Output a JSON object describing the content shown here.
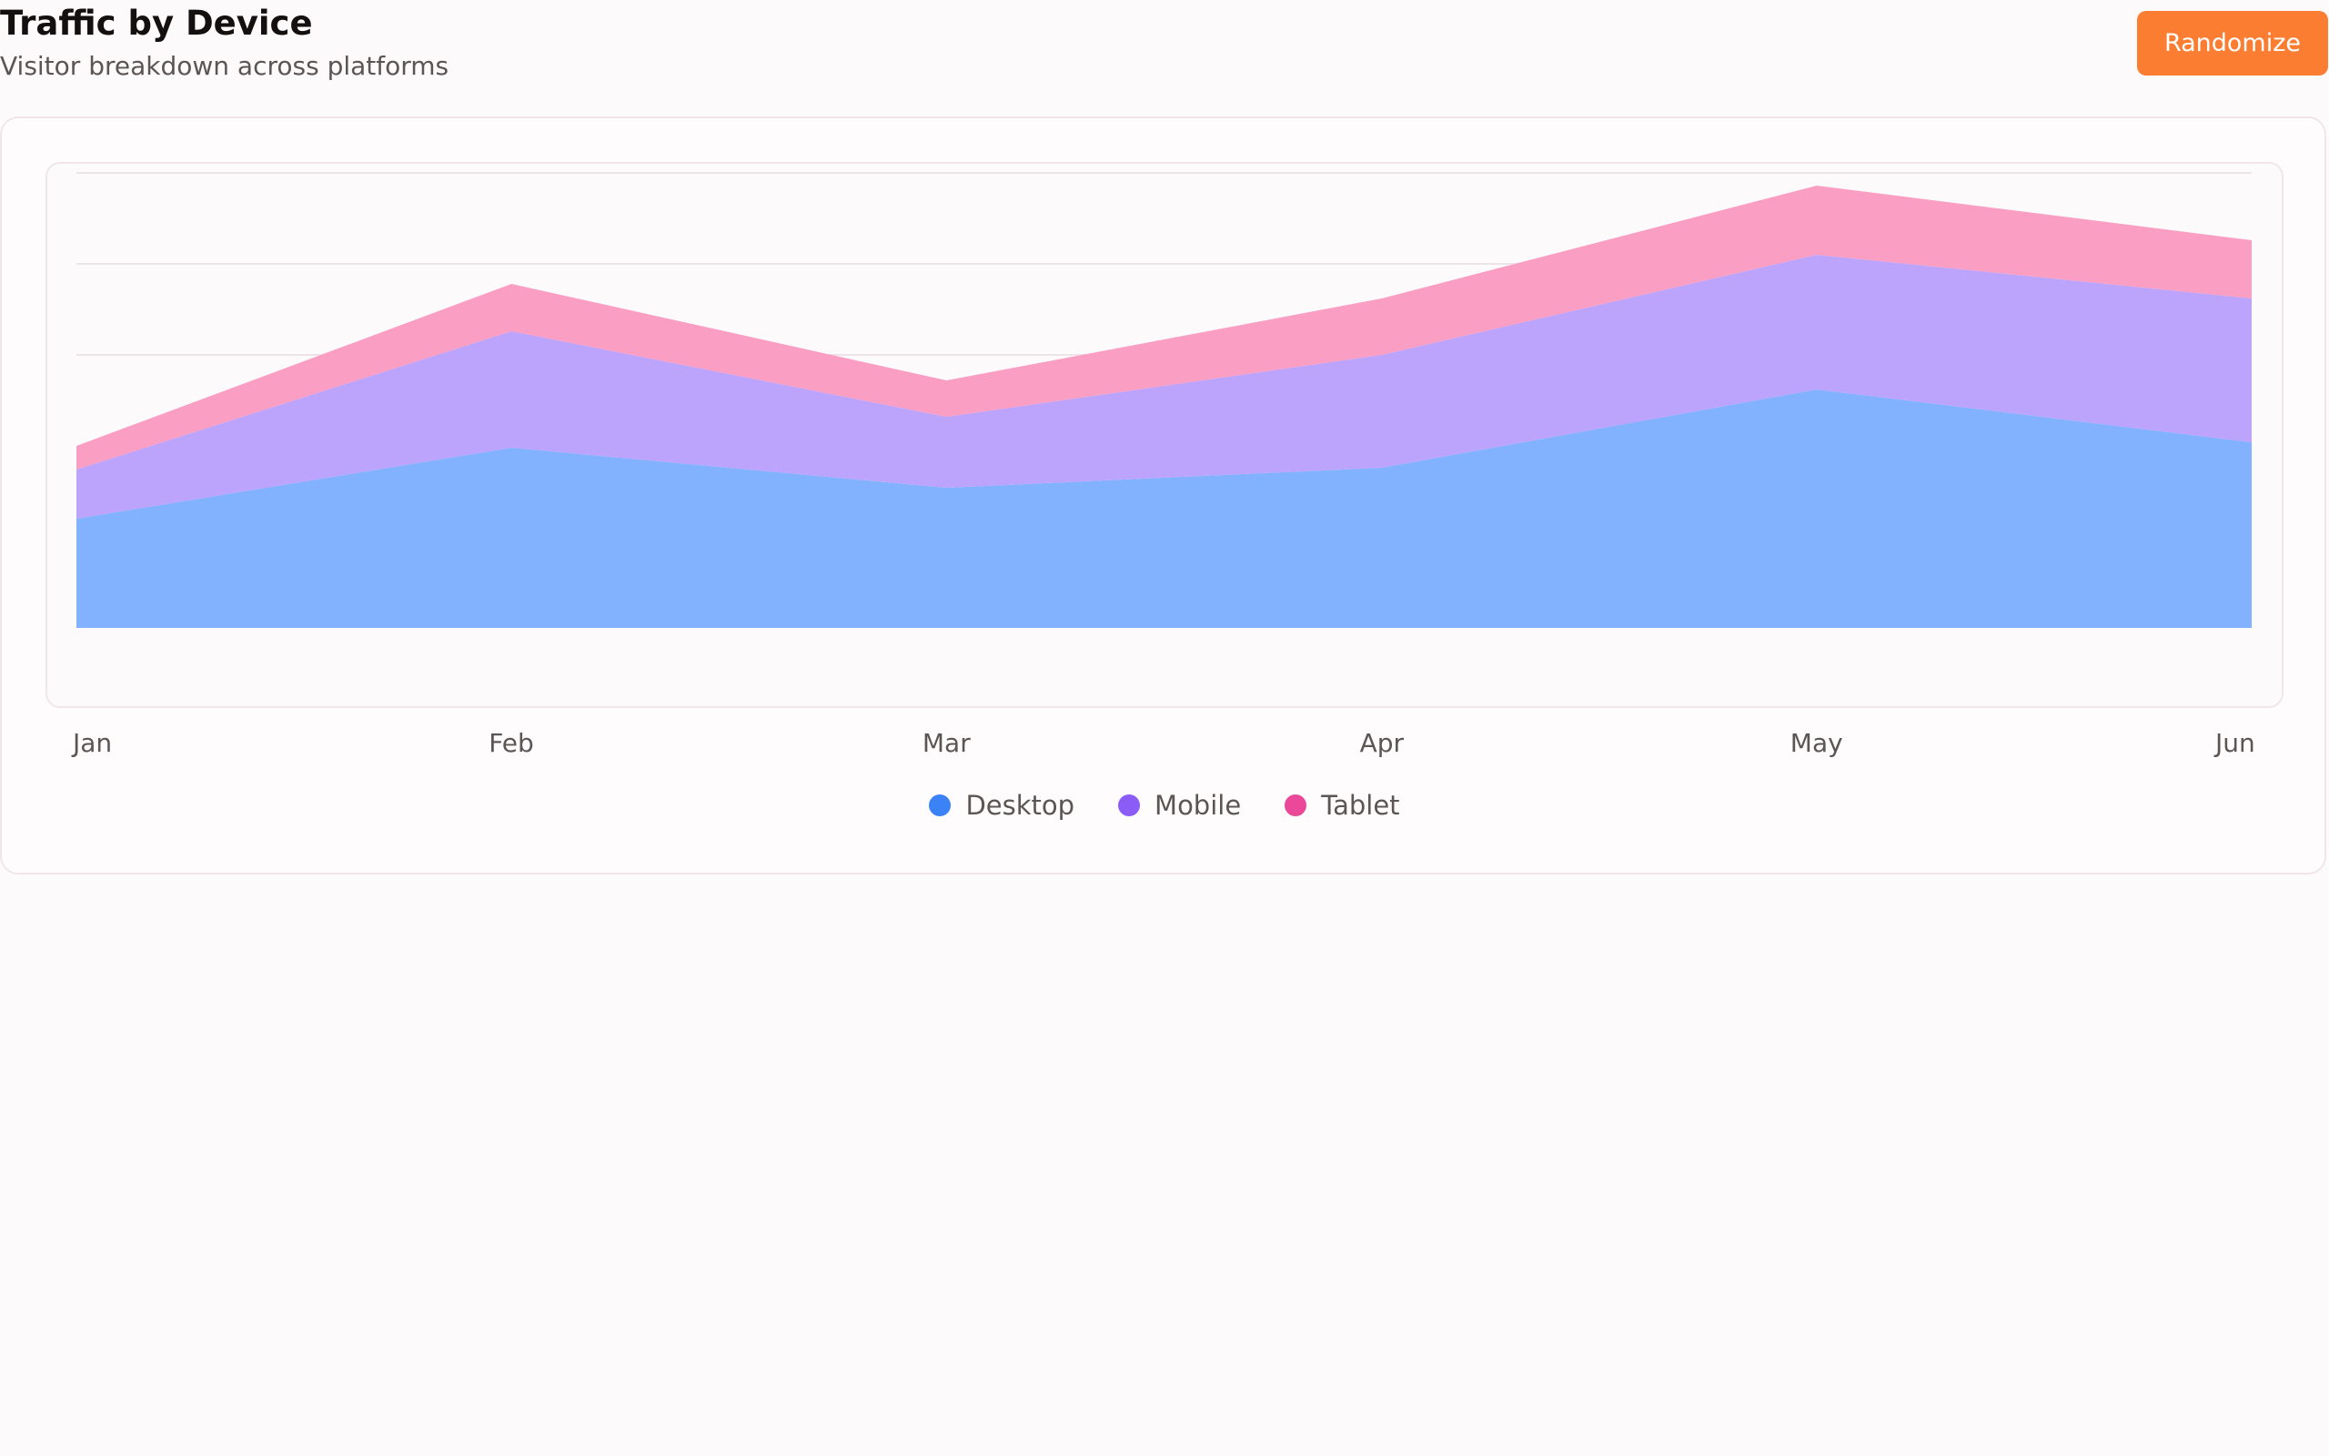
{
  "header": {
    "title": "Traffic by Device",
    "subtitle": "Visitor breakdown across platforms",
    "randomize_label": "Randomize"
  },
  "colors": {
    "button": "#fa7d32",
    "desktop_fill": "#82b1fd",
    "mobile_fill": "#bca3fc",
    "tablet_fill": "#fa9ec3",
    "desktop_legend": "#3b82f6",
    "mobile_legend": "#8b5cf6",
    "tablet_legend": "#ec4899"
  },
  "chart_data": {
    "type": "area",
    "stacked": true,
    "title": "",
    "xlabel": "",
    "ylabel": "",
    "categories": [
      "Jan",
      "Feb",
      "Mar",
      "Apr",
      "May",
      "Jun"
    ],
    "series": [
      {
        "name": "Desktop",
        "values": [
          1200,
          1980,
          1540,
          1760,
          2620,
          2040
        ]
      },
      {
        "name": "Mobile",
        "values": [
          540,
          1280,
          780,
          1240,
          1480,
          1580
        ]
      },
      {
        "name": "Tablet",
        "values": [
          260,
          520,
          400,
          620,
          760,
          640
        ]
      }
    ],
    "ylim": [
      0,
      5000
    ],
    "y_gridlines": [
      3000,
      4000,
      5000
    ],
    "y_tick_labels_shown": false,
    "grid": "horizontal",
    "legend": "bottom-center"
  }
}
